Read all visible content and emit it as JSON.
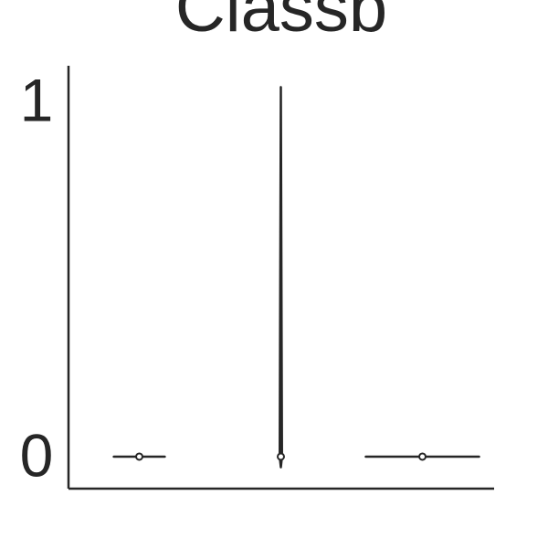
{
  "chart_data": {
    "type": "violin",
    "title": "Classb",
    "categories": [
      null,
      null,
      null
    ],
    "medians": [
      0,
      0,
      0
    ],
    "mins": [
      0,
      -0.03,
      0
    ],
    "maxs": [
      0,
      1.04,
      0
    ],
    "widths": [
      0.45,
      0.02,
      1.0
    ],
    "color": "#262626",
    "ylim": [
      -0.09,
      1.1
    ],
    "yticks": [
      0,
      1
    ]
  }
}
